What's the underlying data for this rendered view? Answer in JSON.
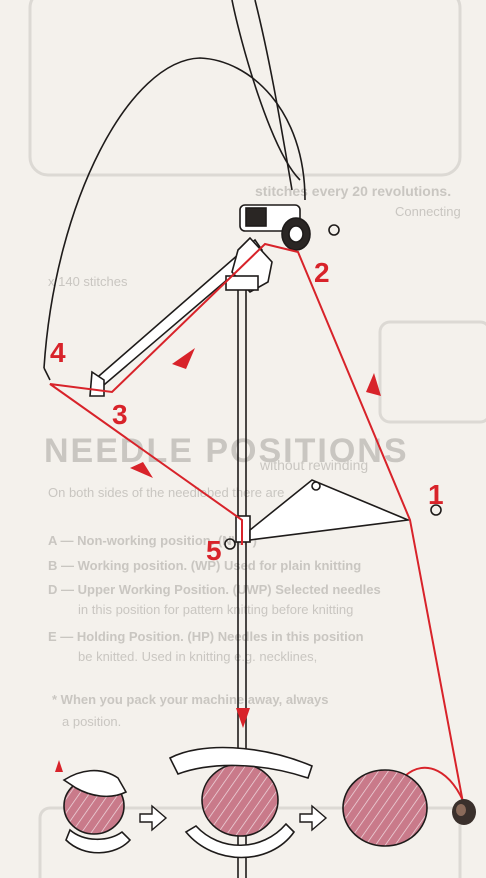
{
  "steps": {
    "s1": "1",
    "s2": "2",
    "s3": "3",
    "s4": "4",
    "s5": "5"
  },
  "background_text": {
    "line_a": "stitches every 20 revolutions.",
    "line_b": "Connecting",
    "line_c": "x 140 stitches",
    "heading": "NEEDLE POSITIONS",
    "sub": "without rewinding",
    "para1": "On both sides of the needlebed there are",
    "itemA": "A — Non-working position. (NWP)",
    "itemB": "B — Working position. (WP) Used for plain knitting",
    "itemD1": "D — Upper Working Position. (UWP) Selected needles",
    "itemD2": "in this position for pattern knitting before knitting",
    "itemE1": "E — Holding Position. (HP) Needles in this position",
    "itemE2": "be knitted. Used in knitting e.g. necklines,",
    "note1": "* When you pack your machine away, always",
    "note2": "a position."
  },
  "colors": {
    "yarn": "#d8232a",
    "ball": "#c97a8a",
    "ink": "#1e1b1a",
    "ghost": "#c9c6c1"
  }
}
